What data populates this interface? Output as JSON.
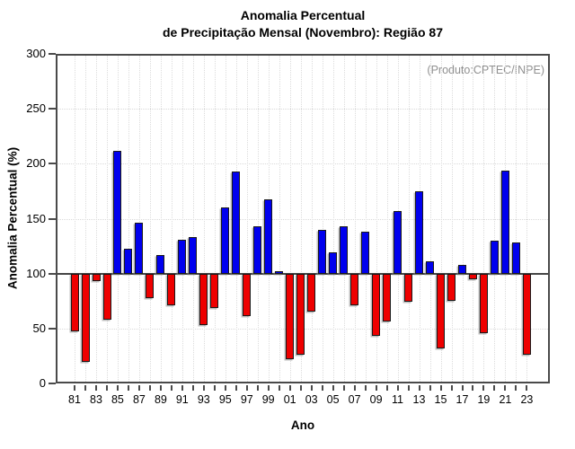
{
  "title": {
    "line1": "Anomalia Percentual",
    "line2": "de Precipitação Mensal (Novembro): Região 87"
  },
  "annotation": "(Produto:CPTEC/INPE)",
  "chart_data": {
    "type": "bar",
    "title": "Anomalia Percentual de Precipitação Mensal (Novembro): Região 87",
    "xlabel": "Ano",
    "ylabel": "Anomalia Percentual (%)",
    "baseline": 100,
    "ylim": [
      0,
      300
    ],
    "yticks": [
      0,
      50,
      100,
      150,
      200,
      250,
      300
    ],
    "grid": "dotted",
    "legend": "none",
    "categories": [
      "1981",
      "1982",
      "1983",
      "1984",
      "1985",
      "1986",
      "1987",
      "1988",
      "1989",
      "1990",
      "1991",
      "1992",
      "1993",
      "1994",
      "1995",
      "1996",
      "1997",
      "1998",
      "1999",
      "2000",
      "2001",
      "2002",
      "2003",
      "2004",
      "2005",
      "2006",
      "2007",
      "2008",
      "2009",
      "2010",
      "2011",
      "2012",
      "2013",
      "2014",
      "2015",
      "2016",
      "2017",
      "2018",
      "2019",
      "2020",
      "2021",
      "2022",
      "2023"
    ],
    "xtick_labels_shown": [
      "81",
      "83",
      "85",
      "87",
      "89",
      "91",
      "93",
      "95",
      "97",
      "99",
      "01",
      "03",
      "05",
      "07",
      "09",
      "11",
      "13",
      "15",
      "17",
      "19",
      "21",
      "23"
    ],
    "values": [
      47,
      20,
      93,
      58,
      212,
      123,
      146,
      78,
      117,
      71,
      131,
      133,
      53,
      69,
      160,
      193,
      61,
      143,
      168,
      102,
      22,
      26,
      65,
      140,
      119,
      143,
      71,
      138,
      43,
      56,
      157,
      74,
      175,
      111,
      32,
      75,
      108,
      95,
      46,
      130,
      194,
      128,
      26
    ],
    "colors": {
      "above_baseline": "#0000ee",
      "below_baseline": "#ee0000",
      "bar_outline": "#1a1a1a",
      "baseline_line": "#444444",
      "grid_line": "#d9d9d9",
      "frame": "#4a4a4a",
      "annotation_text": "#909090"
    }
  }
}
